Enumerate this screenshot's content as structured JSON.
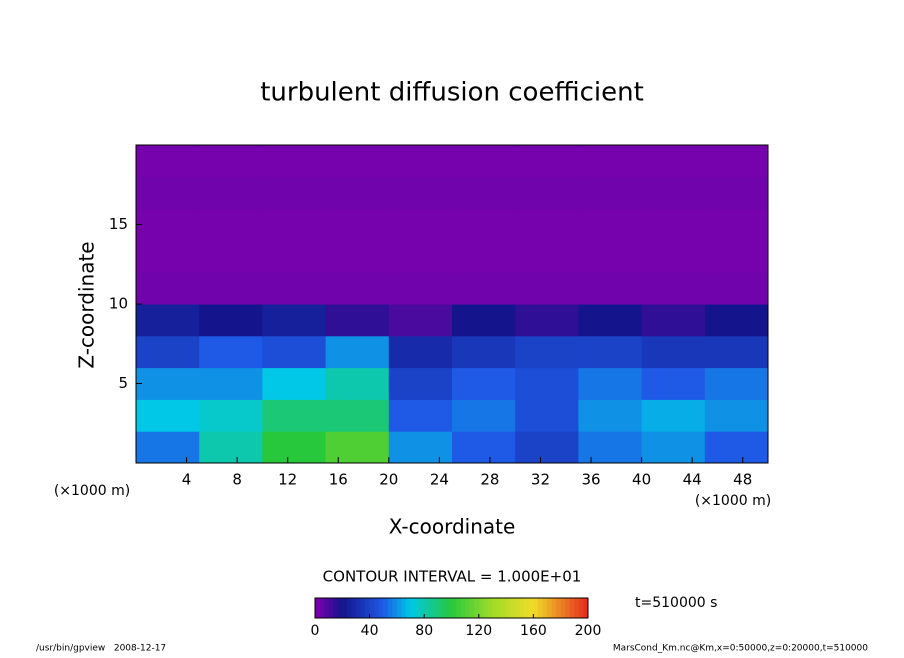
{
  "chart_data": {
    "type": "contour",
    "title": "turbulent diffusion coefficient",
    "x_label": "X-coordinate",
    "y_label": "Z-coordinate",
    "x_unit": "(×1000 m)",
    "y_unit": "(×1000 m)",
    "contour_interval": "CONTOUR INTERVAL = 1.000E+01",
    "time_label": "t=510000 s",
    "footer_left": "/usr/bin/gpview   2008-12-17",
    "footer_right": "MarsCond_Km.nc@Km,x=0:50000,z=0:20000,t=510000",
    "xlim": [
      0,
      50
    ],
    "ylim": [
      0,
      20
    ],
    "xticks": [
      4,
      8,
      12,
      16,
      20,
      24,
      28,
      32,
      36,
      40,
      44,
      48
    ],
    "yticks": [
      5,
      10,
      15
    ],
    "x": [
      2.5,
      7.5,
      12.5,
      17.5,
      22.5,
      27.5,
      32.5,
      37.5,
      42.5,
      47.5
    ],
    "y": [
      1,
      3,
      5,
      7,
      9,
      11,
      13,
      15,
      17,
      19
    ],
    "values": [
      [
        55,
        80,
        100,
        110,
        60,
        50,
        40,
        55,
        60,
        50
      ],
      [
        70,
        75,
        90,
        90,
        50,
        55,
        45,
        60,
        65,
        60
      ],
      [
        60,
        60,
        70,
        80,
        40,
        50,
        45,
        55,
        50,
        55
      ],
      [
        40,
        50,
        45,
        60,
        30,
        35,
        40,
        40,
        35,
        35
      ],
      [
        25,
        20,
        25,
        15,
        10,
        20,
        15,
        20,
        15,
        20
      ],
      [
        3,
        3,
        3,
        3,
        3,
        3,
        3,
        3,
        3,
        3
      ],
      [
        2,
        2,
        2,
        2,
        2,
        2,
        2,
        2,
        2,
        2
      ],
      [
        2,
        2,
        2,
        2,
        2,
        2,
        2,
        2,
        2,
        2
      ],
      [
        3,
        3,
        3,
        3,
        3,
        3,
        3,
        3,
        3,
        3
      ],
      [
        2,
        2,
        2,
        2,
        2,
        2,
        2,
        2,
        2,
        2
      ]
    ],
    "clim": [
      0,
      200
    ],
    "colorbar_ticks": [
      0,
      40,
      80,
      120,
      160,
      200
    ]
  }
}
